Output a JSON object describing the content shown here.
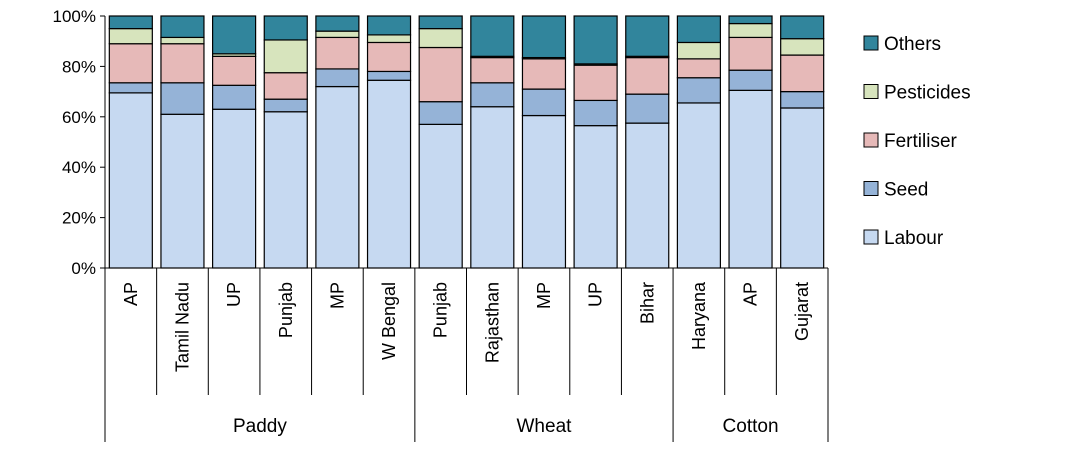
{
  "chart_data": {
    "type": "bar",
    "stacked": true,
    "percent": true,
    "title": "",
    "xlabel": "",
    "ylabel": "",
    "ylim": [
      0,
      100
    ],
    "y_ticks": [
      "0%",
      "20%",
      "40%",
      "60%",
      "80%",
      "100%"
    ],
    "grid": false,
    "legend_position": "right",
    "categories": [
      "AP",
      "Tamil Nadu",
      "UP",
      "Punjab",
      "MP",
      "W Bengal",
      "Punjab",
      "Rajasthan",
      "MP",
      "UP",
      "Bihar",
      "Haryana",
      "AP",
      "Gujarat"
    ],
    "groups": [
      {
        "label": "Paddy",
        "count": 6
      },
      {
        "label": "Wheat",
        "count": 5
      },
      {
        "label": "Cotton",
        "count": 3
      }
    ],
    "series": [
      {
        "name": "Labour",
        "color": "#c6d9f1",
        "values": [
          69.5,
          61,
          63,
          62,
          72,
          74.5,
          57,
          64,
          60.5,
          56.5,
          57.5,
          65.5,
          70.5,
          63.5
        ]
      },
      {
        "name": "Seed",
        "color": "#95b3d7",
        "values": [
          4,
          12.5,
          9.5,
          5,
          7,
          3.5,
          9,
          9.5,
          10.5,
          10,
          11.5,
          10,
          8,
          6.5
        ]
      },
      {
        "name": "Fertiliser",
        "color": "#e6b9b8",
        "values": [
          15.5,
          15.5,
          11.5,
          10.5,
          12.5,
          11.5,
          21.5,
          10,
          12,
          14,
          14.5,
          7.5,
          13,
          14.5
        ]
      },
      {
        "name": "Pesticides",
        "color": "#d7e4bd",
        "values": [
          6,
          2.5,
          1,
          13,
          2.5,
          3,
          7.5,
          0.5,
          0.5,
          0.5,
          0.5,
          6.5,
          5.5,
          6.5
        ]
      },
      {
        "name": "Others",
        "color": "#31859c",
        "values": [
          5,
          8.5,
          15,
          9.5,
          6,
          7.5,
          5,
          16,
          16.5,
          19,
          16,
          10.5,
          3,
          9
        ]
      }
    ]
  }
}
